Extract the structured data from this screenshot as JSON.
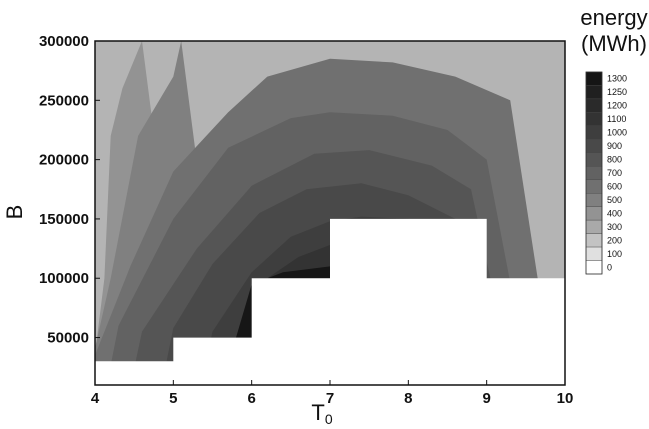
{
  "chart_data": {
    "type": "heatmap",
    "xlabel_main": "T",
    "xlabel_sub": "0",
    "ylabel": "B",
    "x_ticks": [
      4,
      5,
      6,
      7,
      8,
      9,
      10
    ],
    "y_ticks": [
      50000,
      100000,
      150000,
      200000,
      250000,
      300000
    ],
    "xlim": [
      4,
      10
    ],
    "ylim": [
      10000,
      300000
    ],
    "colorbar": {
      "title_line1": "energy",
      "title_line2": "(MWh)",
      "levels": [
        1300,
        1250,
        1200,
        1100,
        1000,
        900,
        800,
        700,
        600,
        500,
        400,
        300,
        200,
        100,
        0
      ],
      "colors": [
        "#151515",
        "#202020",
        "#2a2a2a",
        "#333333",
        "#3e3e3e",
        "#494949",
        "#555555",
        "#626262",
        "#707070",
        "#808080",
        "#939393",
        "#a9a9a9",
        "#c3c3c3",
        "#e0e0e0",
        "#ffffff"
      ]
    },
    "infeasible_boundary": {
      "x": [
        4,
        5,
        5,
        6,
        6,
        7,
        7,
        9,
        9,
        10
      ],
      "y": [
        30000,
        30000,
        50000,
        50000,
        100000,
        100000,
        150000,
        150000,
        100000,
        100000
      ]
    },
    "contours": [
      {
        "level": 400,
        "x": [
          4.12,
          4.2,
          4.35,
          4.6
        ],
        "y": [
          100000,
          220000,
          260000,
          300000
        ],
        "color": "#939393"
      },
      {
        "level": 500,
        "x": [
          4.03,
          4.2,
          4.55,
          5.0,
          5.1
        ],
        "y": [
          50000,
          100000,
          220000,
          270000,
          300000
        ],
        "color": "#808080"
      },
      {
        "level": 600,
        "x": [
          4.0,
          4.45,
          5.0,
          5.7,
          6.2,
          7.0,
          7.8,
          8.6,
          9.3
        ],
        "y": [
          35000,
          110000,
          190000,
          240000,
          270000,
          285000,
          282000,
          270000,
          250000
        ],
        "color": "#707070"
      },
      {
        "level": 700,
        "x": [
          4.3,
          5.0,
          5.7,
          6.5,
          7.0,
          7.8,
          8.5,
          9.0
        ],
        "y": [
          60000,
          150000,
          210000,
          235000,
          240000,
          237000,
          225000,
          200000
        ],
        "color": "#626262"
      },
      {
        "level": 800,
        "x": [
          4.6,
          5.3,
          6.0,
          6.8,
          7.5,
          8.3,
          8.8
        ],
        "y": [
          55000,
          125000,
          178000,
          205000,
          208000,
          195000,
          175000
        ],
        "color": "#555555"
      },
      {
        "level": 900,
        "x": [
          5.0,
          5.5,
          6.1,
          6.7,
          7.4,
          8.0,
          8.6
        ],
        "y": [
          58000,
          112000,
          155000,
          175000,
          180000,
          170000,
          150000
        ],
        "color": "#494949"
      },
      {
        "level": 1000,
        "x": [
          5.5,
          6.0,
          6.5,
          7.0,
          7.4,
          8.0
        ],
        "y": [
          55000,
          105000,
          135000,
          148000,
          152000,
          150000
        ],
        "color": "#3e3e3e"
      },
      {
        "level": 1100,
        "x": [
          5.9,
          6.2,
          6.6,
          7.0
        ],
        "y": [
          52000,
          100000,
          118000,
          128000
        ],
        "color": "#333333"
      }
    ]
  }
}
